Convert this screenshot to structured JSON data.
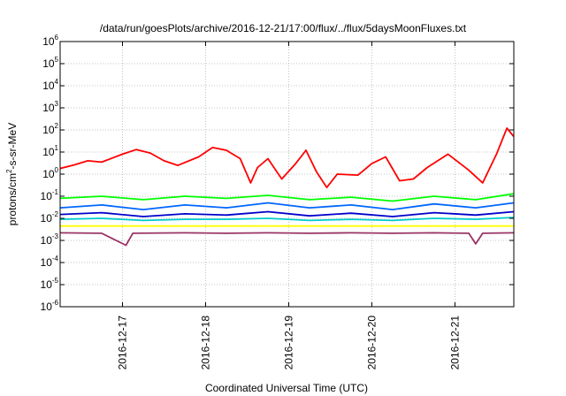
{
  "chart_data": {
    "type": "line",
    "title": "/data/run/goesPlots/archive/2016-12-21/17:00/flux/../flux/5daysMoonFluxes.txt",
    "xlabel": "Coordinated Universal Time (UTC)",
    "ylabel": {
      "base": "protons/cm",
      "sup": "2",
      "rest": "-s-sr-MeV"
    },
    "x_range": [
      "2016-12-16T06:00",
      "2016-12-21T17:00"
    ],
    "x_ticks": [
      "2016-12-17",
      "2016-12-18",
      "2016-12-19",
      "2016-12-20",
      "2016-12-21"
    ],
    "y_scale": "log",
    "y_ticks": [
      {
        "value": 1e-06,
        "base": "10",
        "exp": "-6"
      },
      {
        "value": 1e-05,
        "base": "10",
        "exp": "-5"
      },
      {
        "value": 0.0001,
        "base": "10",
        "exp": "-4"
      },
      {
        "value": 0.001,
        "base": "10",
        "exp": "-3"
      },
      {
        "value": 0.01,
        "base": "10",
        "exp": "-2"
      },
      {
        "value": 0.1,
        "base": "10",
        "exp": "-1"
      },
      {
        "value": 1,
        "base": "10",
        "exp": "0"
      },
      {
        "value": 10,
        "base": "10",
        "exp": "1"
      },
      {
        "value": 100,
        "base": "10",
        "exp": "2"
      },
      {
        "value": 1000,
        "base": "10",
        "exp": "3"
      },
      {
        "value": 10000,
        "base": "10",
        "exp": "4"
      },
      {
        "value": 100000,
        "base": "10",
        "exp": "5"
      },
      {
        "value": 1000000,
        "base": "10",
        "exp": "6"
      }
    ],
    "grid": true,
    "series": [
      {
        "color": "#ff0000",
        "points": [
          [
            "2016-12-16T06:00",
            1.8
          ],
          [
            "2016-12-16T10:00",
            2.6
          ],
          [
            "2016-12-16T14:00",
            4.0
          ],
          [
            "2016-12-16T18:00",
            3.5
          ],
          [
            "2016-12-17T00:00",
            8.0
          ],
          [
            "2016-12-17T04:00",
            13
          ],
          [
            "2016-12-17T08:00",
            9
          ],
          [
            "2016-12-17T12:00",
            4
          ],
          [
            "2016-12-17T16:00",
            2.5
          ],
          [
            "2016-12-17T22:00",
            6
          ],
          [
            "2016-12-18T02:00",
            16
          ],
          [
            "2016-12-18T06:00",
            12
          ],
          [
            "2016-12-18T10:00",
            5
          ],
          [
            "2016-12-18T13:00",
            0.4
          ],
          [
            "2016-12-18T15:00",
            2
          ],
          [
            "2016-12-18T18:00",
            5
          ],
          [
            "2016-12-18T22:00",
            0.6
          ],
          [
            "2016-12-19T02:00",
            3
          ],
          [
            "2016-12-19T05:00",
            12
          ],
          [
            "2016-12-19T08:00",
            1.3
          ],
          [
            "2016-12-19T11:00",
            0.25
          ],
          [
            "2016-12-19T14:00",
            1
          ],
          [
            "2016-12-19T20:00",
            0.9
          ],
          [
            "2016-12-20T00:00",
            3
          ],
          [
            "2016-12-20T04:00",
            6
          ],
          [
            "2016-12-20T08:00",
            0.5
          ],
          [
            "2016-12-20T12:00",
            0.6
          ],
          [
            "2016-12-20T16:00",
            2
          ],
          [
            "2016-12-20T22:00",
            8
          ],
          [
            "2016-12-21T04:00",
            1.5
          ],
          [
            "2016-12-21T08:00",
            0.4
          ],
          [
            "2016-12-21T12:00",
            8
          ],
          [
            "2016-12-21T15:00",
            120
          ],
          [
            "2016-12-21T17:00",
            50
          ]
        ]
      },
      {
        "color": "#00ff00",
        "points": [
          [
            "2016-12-16T06:00",
            0.08
          ],
          [
            "2016-12-16T18:00",
            0.1
          ],
          [
            "2016-12-17T06:00",
            0.07
          ],
          [
            "2016-12-17T18:00",
            0.1
          ],
          [
            "2016-12-18T06:00",
            0.08
          ],
          [
            "2016-12-18T18:00",
            0.11
          ],
          [
            "2016-12-19T06:00",
            0.07
          ],
          [
            "2016-12-19T18:00",
            0.09
          ],
          [
            "2016-12-20T06:00",
            0.06
          ],
          [
            "2016-12-20T18:00",
            0.1
          ],
          [
            "2016-12-21T06:00",
            0.07
          ],
          [
            "2016-12-21T17:00",
            0.13
          ]
        ]
      },
      {
        "color": "#0066ff",
        "points": [
          [
            "2016-12-16T06:00",
            0.03
          ],
          [
            "2016-12-16T18:00",
            0.04
          ],
          [
            "2016-12-17T06:00",
            0.025
          ],
          [
            "2016-12-17T18:00",
            0.04
          ],
          [
            "2016-12-18T06:00",
            0.03
          ],
          [
            "2016-12-18T18:00",
            0.05
          ],
          [
            "2016-12-19T06:00",
            0.03
          ],
          [
            "2016-12-19T18:00",
            0.04
          ],
          [
            "2016-12-20T06:00",
            0.025
          ],
          [
            "2016-12-20T18:00",
            0.045
          ],
          [
            "2016-12-21T06:00",
            0.03
          ],
          [
            "2016-12-21T17:00",
            0.05
          ]
        ]
      },
      {
        "color": "#0000cc",
        "points": [
          [
            "2016-12-16T06:00",
            0.015
          ],
          [
            "2016-12-16T18:00",
            0.018
          ],
          [
            "2016-12-17T06:00",
            0.012
          ],
          [
            "2016-12-17T18:00",
            0.016
          ],
          [
            "2016-12-18T06:00",
            0.014
          ],
          [
            "2016-12-18T18:00",
            0.02
          ],
          [
            "2016-12-19T06:00",
            0.013
          ],
          [
            "2016-12-19T18:00",
            0.017
          ],
          [
            "2016-12-20T06:00",
            0.012
          ],
          [
            "2016-12-20T18:00",
            0.018
          ],
          [
            "2016-12-21T06:00",
            0.014
          ],
          [
            "2016-12-21T17:00",
            0.02
          ]
        ]
      },
      {
        "color": "#00cccc",
        "points": [
          [
            "2016-12-16T06:00",
            0.009
          ],
          [
            "2016-12-16T18:00",
            0.01
          ],
          [
            "2016-12-17T06:00",
            0.008
          ],
          [
            "2016-12-17T18:00",
            0.009
          ],
          [
            "2016-12-18T06:00",
            0.009
          ],
          [
            "2016-12-18T18:00",
            0.01
          ],
          [
            "2016-12-19T06:00",
            0.008
          ],
          [
            "2016-12-19T18:00",
            0.009
          ],
          [
            "2016-12-20T06:00",
            0.008
          ],
          [
            "2016-12-20T18:00",
            0.01
          ],
          [
            "2016-12-21T06:00",
            0.009
          ],
          [
            "2016-12-21T17:00",
            0.011
          ]
        ]
      },
      {
        "color": "#ffff00",
        "points": [
          [
            "2016-12-16T06:00",
            0.0045
          ],
          [
            "2016-12-17T06:00",
            0.0045
          ],
          [
            "2016-12-18T06:00",
            0.0045
          ],
          [
            "2016-12-19T06:00",
            0.0045
          ],
          [
            "2016-12-20T06:00",
            0.0045
          ],
          [
            "2016-12-21T06:00",
            0.0045
          ],
          [
            "2016-12-21T17:00",
            0.0045
          ]
        ]
      },
      {
        "color": "#993366",
        "points": [
          [
            "2016-12-16T06:00",
            0.0022
          ],
          [
            "2016-12-16T18:00",
            0.0021
          ],
          [
            "2016-12-17T01:00",
            0.0006
          ],
          [
            "2016-12-17T03:00",
            0.0021
          ],
          [
            "2016-12-17T18:00",
            0.0022
          ],
          [
            "2016-12-18T06:00",
            0.0021
          ],
          [
            "2016-12-18T18:00",
            0.0022
          ],
          [
            "2016-12-19T06:00",
            0.0021
          ],
          [
            "2016-12-19T18:00",
            0.0022
          ],
          [
            "2016-12-20T06:00",
            0.0021
          ],
          [
            "2016-12-20T18:00",
            0.0022
          ],
          [
            "2016-12-21T04:00",
            0.0021
          ],
          [
            "2016-12-21T06:00",
            0.0007
          ],
          [
            "2016-12-21T08:00",
            0.0021
          ],
          [
            "2016-12-21T17:00",
            0.0022
          ]
        ]
      }
    ]
  }
}
